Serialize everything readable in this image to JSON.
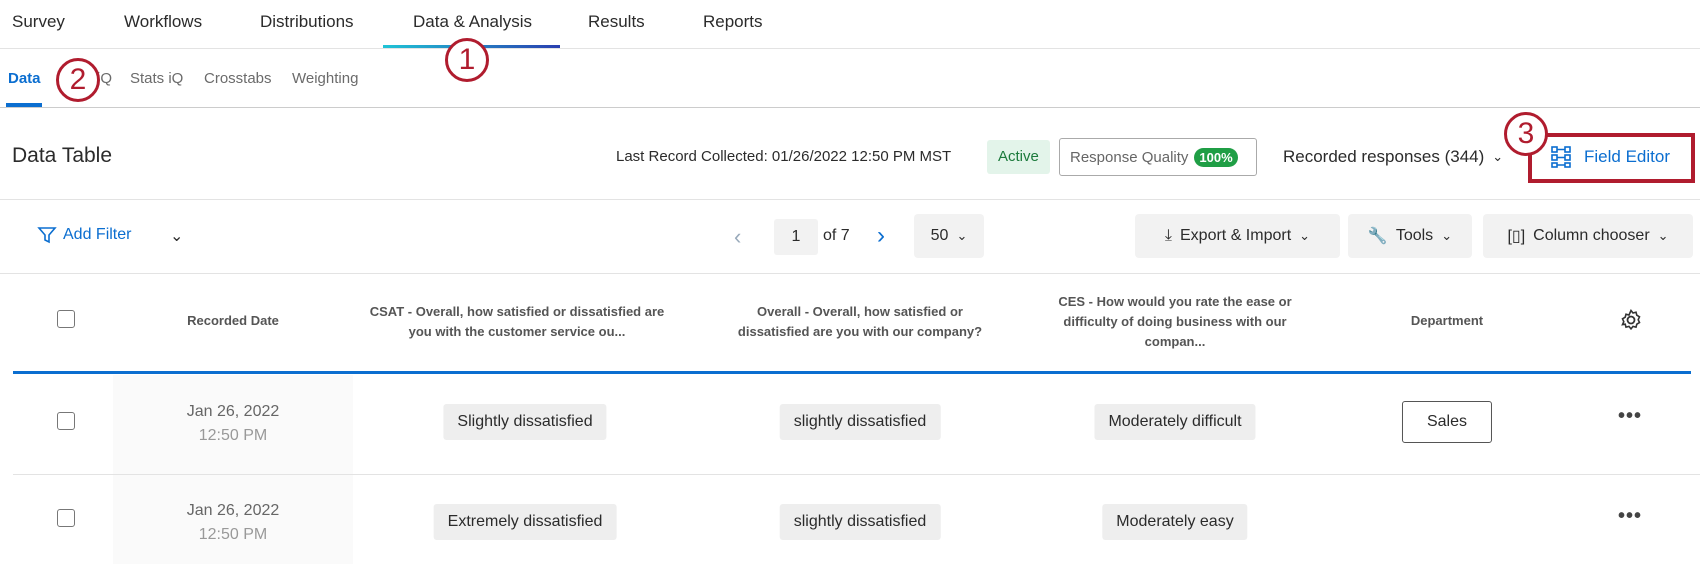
{
  "top_nav": [
    "Survey",
    "Workflows",
    "Distributions",
    "Data & Analysis",
    "Results",
    "Reports"
  ],
  "sub_tabs": [
    "Data",
    "iQ",
    "Stats iQ",
    "Crosstabs",
    "Weighting"
  ],
  "callouts": [
    "1",
    "2",
    "3"
  ],
  "header": {
    "title": "Data Table",
    "last_record": "Last Record Collected: 01/26/2022 12:50 PM MST",
    "status": "Active",
    "response_quality_label": "Response Quality",
    "response_quality_value": "100%",
    "recorded_responses": "Recorded responses (344)",
    "field_editor": "Field Editor"
  },
  "toolbar": {
    "add_filter": "Add Filter",
    "page": "1",
    "of_pages": "of 7",
    "per_page": "50",
    "export_import": "Export & Import",
    "tools": "Tools",
    "column_chooser": "Column chooser"
  },
  "columns": [
    "Recorded Date",
    "CSAT - Overall, how satisfied or dissatisfied are you with the customer service ou...",
    "Overall - Overall, how satisfied or dissatisfied are you with our company?",
    "CES - How would you rate the ease or difficulty of doing business with our compan...",
    "Department"
  ],
  "rows": [
    {
      "date": "Jan 26, 2022",
      "time": "12:50 PM",
      "csat": "Slightly dissatisfied",
      "overall": "slightly dissatisfied",
      "ces": "Moderately difficult",
      "department": "Sales"
    },
    {
      "date": "Jan 26, 2022",
      "time": "12:50 PM",
      "csat": "Extremely dissatisfied",
      "overall": "slightly dissatisfied",
      "ces": "Moderately easy",
      "department": ""
    }
  ],
  "colors": {
    "accent": "#0b6ed0",
    "callout": "#b01c2e",
    "active_bg": "#e3f4ea",
    "quality_green": "#1f9e45"
  }
}
